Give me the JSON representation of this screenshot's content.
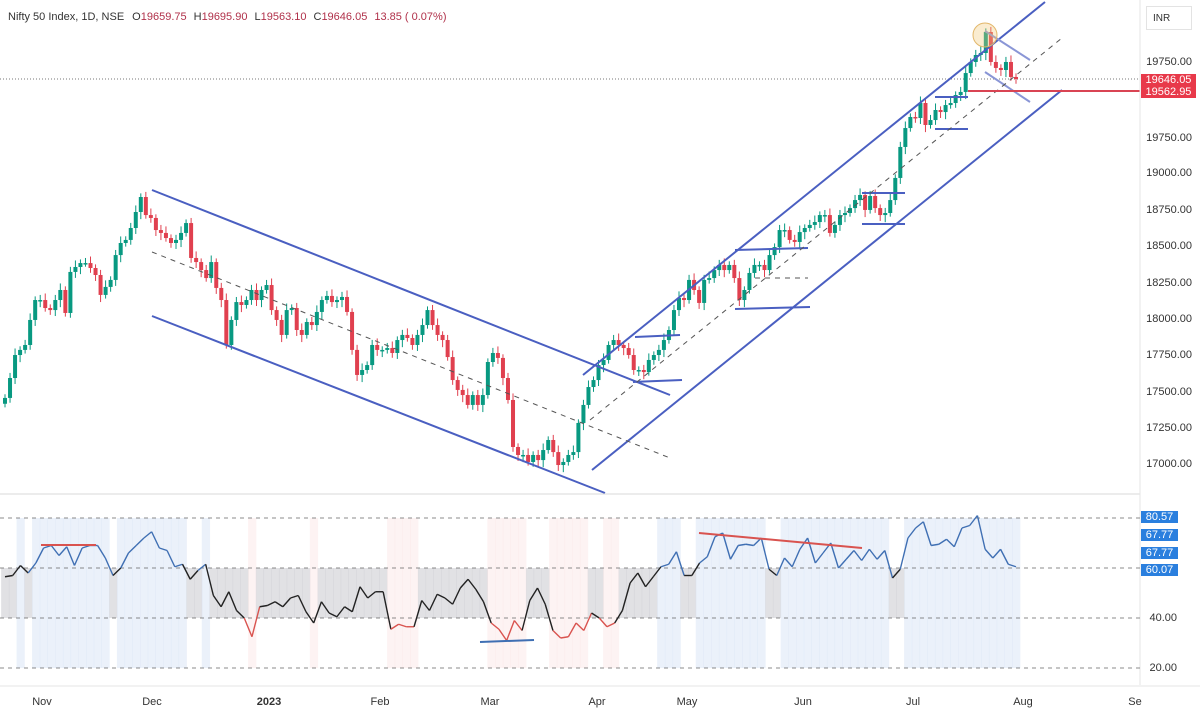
{
  "header": {
    "symbol": "Nifty 50 Index, 1D, NSE",
    "open_label": "O",
    "open": "19659.75",
    "high_label": "H",
    "high": "19695.90",
    "low_label": "L",
    "low": "19563.10",
    "close_label": "C",
    "close": "19646.05",
    "change": "13.85 ( 0.07%)"
  },
  "currency": "INR",
  "price_axis": {
    "labels": [
      "19750.00",
      "19750.00",
      "19000.00",
      "18750.00",
      "18500.00",
      "18250.00",
      "18000.00",
      "17750.00",
      "17500.00",
      "17250.00",
      "17000.00"
    ],
    "last_price_tag": "19646.05",
    "level_tag": "19562.95"
  },
  "rsi_axis": {
    "tags": [
      "80.57",
      "67.77",
      "67.77",
      "60.07"
    ],
    "labels": [
      "40.00",
      "20.00"
    ]
  },
  "time_axis": {
    "labels": [
      "Nov",
      "Dec",
      "2023",
      "Feb",
      "Mar",
      "Apr",
      "May",
      "Jun",
      "Jul",
      "Aug",
      "Se"
    ]
  },
  "colors": {
    "up": "#089981",
    "down": "#e0404f",
    "trendline": "#4a5fc1",
    "level": "#d94453",
    "rsi_up": "#3f6fb3",
    "rsi_mid": "#222222",
    "rsi_down": "#d9534f"
  },
  "chart_data": [
    {
      "type": "candlestick",
      "title": "Nifty 50 Index, 1D, NSE",
      "ylim": [
        16850,
        20200
      ],
      "grid": false,
      "closes": [
        17454,
        17591,
        17749,
        17784,
        17818,
        17990,
        18127,
        18127,
        18072,
        18058,
        18127,
        18196,
        18038,
        18320,
        18354,
        18381,
        18381,
        18347,
        18299,
        18162,
        18217,
        18265,
        18436,
        18519,
        18540,
        18622,
        18732,
        18835,
        18711,
        18691,
        18608,
        18588,
        18553,
        18519,
        18540,
        18588,
        18656,
        18416,
        18388,
        18333,
        18278,
        18388,
        18210,
        18127,
        17818,
        17990,
        18113,
        18093,
        18127,
        18196,
        18127,
        18196,
        18230,
        18058,
        17990,
        17887,
        18058,
        18072,
        17921,
        17887,
        17976,
        17955,
        18045,
        18127,
        18155,
        18113,
        18127,
        18148,
        18045,
        17784,
        17612,
        17646,
        17680,
        17818,
        17784,
        17784,
        17797,
        17763,
        17852,
        17887,
        17866,
        17818,
        17887,
        17955,
        18058,
        17955,
        17887,
        17852,
        17735,
        17577,
        17509,
        17474,
        17406,
        17474,
        17406,
        17474,
        17701,
        17763,
        17729,
        17591,
        17440,
        17117,
        17062,
        17062,
        17014,
        17062,
        17027,
        17096,
        17165,
        17082,
        16993,
        17014,
        17062,
        17082,
        17282,
        17406,
        17529,
        17577,
        17680,
        17715,
        17818,
        17852,
        17818,
        17797,
        17749,
        17646,
        17646,
        17632,
        17715,
        17749,
        17784,
        17852,
        17921,
        18058,
        18141,
        18127,
        18265,
        18196,
        18107,
        18265,
        18278,
        18333,
        18368,
        18333,
        18368,
        18278,
        18127,
        18196,
        18313,
        18368,
        18368,
        18333,
        18436,
        18491,
        18608,
        18608,
        18540,
        18526,
        18594,
        18622,
        18643,
        18663,
        18711,
        18711,
        18588,
        18643,
        18711,
        18725,
        18759,
        18814,
        18849,
        18746,
        18842,
        18759,
        18711,
        18725,
        18814,
        18966,
        19179,
        19309,
        19385,
        19378,
        19481,
        19330,
        19364,
        19433,
        19419,
        19467,
        19481,
        19536,
        19557,
        19687,
        19763,
        19811,
        19825,
        19969,
        19763,
        19722,
        19708,
        19763,
        19660,
        19646
      ]
    },
    {
      "type": "line",
      "title": "",
      "ylim": [
        10,
        90
      ],
      "levels": [
        80,
        60,
        40,
        20
      ],
      "values": [
        56.5,
        57,
        61,
        58,
        62,
        68,
        69,
        65,
        68.5,
        61,
        68,
        69,
        69,
        64,
        57,
        60,
        66,
        69,
        72,
        74.5,
        68,
        67,
        60.5,
        61.5,
        55.5,
        59,
        61.5,
        49,
        44.5,
        50.5,
        43,
        40,
        32.5,
        44.5,
        45,
        46.5,
        44.5,
        48,
        49,
        42.5,
        38,
        46.5,
        42,
        40.5,
        44.5,
        42.5,
        52.5,
        48,
        50.5,
        50.5,
        35.5,
        37.5,
        36.5,
        36.5,
        47,
        43,
        49.5,
        48,
        45.5,
        52,
        55.5,
        51.5,
        46.5,
        38,
        35.5,
        31,
        39,
        35,
        47,
        52,
        45.5,
        35,
        32,
        32.5,
        38,
        35,
        42,
        40,
        36.5,
        38,
        43,
        54,
        58,
        52.5,
        56.5,
        60.5,
        61.5,
        66.5,
        57,
        57,
        62,
        64.5,
        72.5,
        74,
        63.5,
        69,
        69.5,
        69,
        72,
        59.5,
        57,
        64,
        60.5,
        67.5,
        72,
        62,
        66,
        70,
        60,
        63.5,
        67,
        63,
        67.5,
        63.5,
        67,
        56,
        59.5,
        72,
        76,
        78.5,
        69,
        69.5,
        71.5,
        68.5,
        76,
        77,
        81,
        67.5,
        64,
        67.5,
        61.5,
        60.5
      ]
    }
  ]
}
